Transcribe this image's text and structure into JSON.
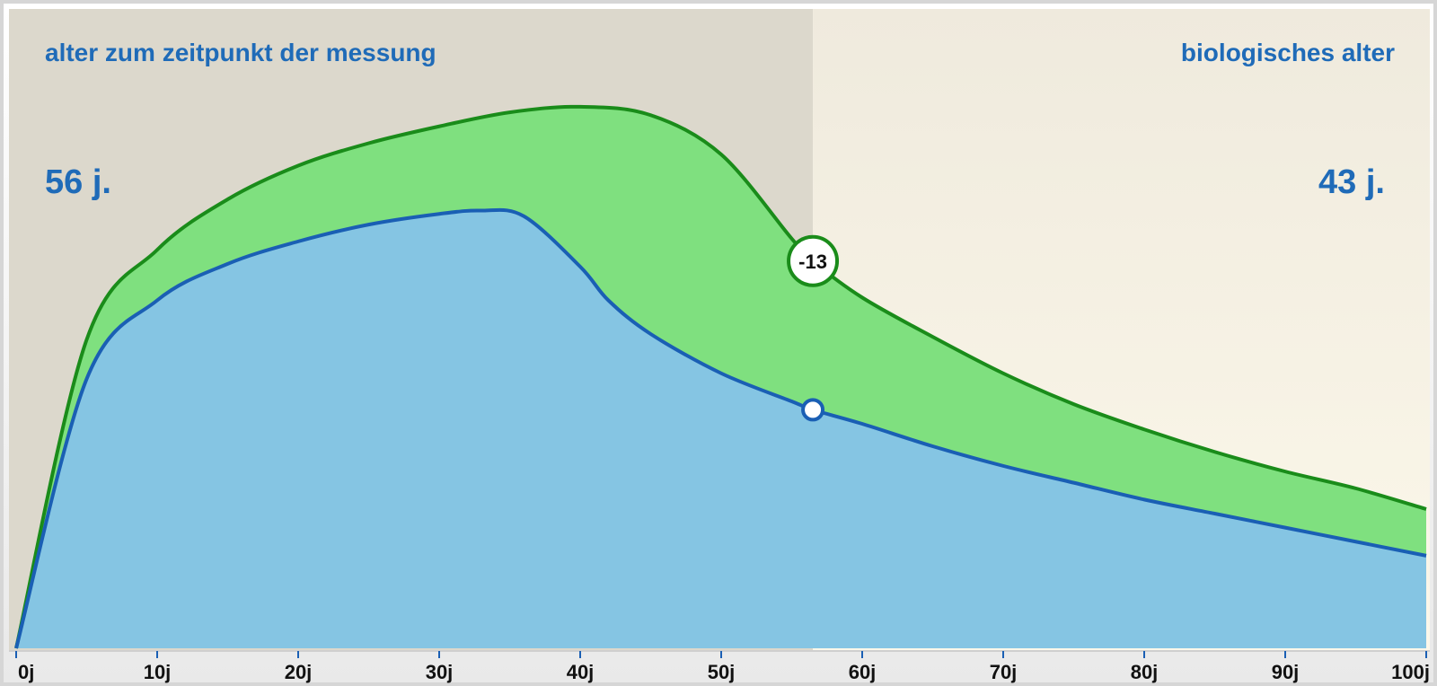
{
  "header": {
    "left_label": "alter zum zeitpunkt der messung",
    "right_label": "biologisches alter",
    "left_value": "56 j.",
    "right_value": "43 j."
  },
  "chart_data": {
    "type": "area",
    "xlim": [
      0,
      100
    ],
    "x_ticks": [
      "0j",
      "10j",
      "20j",
      "30j",
      "40j",
      "50j",
      "60j",
      "70j",
      "80j",
      "90j",
      "100j"
    ],
    "measurement_age": 56.5,
    "difference_label": "-13",
    "series": [
      {
        "color": "#1a8c1a",
        "fill": "#7fe07f",
        "x": [
          0,
          5,
          10,
          15,
          20,
          25,
          30,
          35,
          40,
          45,
          50,
          55,
          56.5,
          60,
          65,
          70,
          75,
          80,
          85,
          90,
          95,
          100
        ],
        "y": [
          0,
          55,
          71,
          80,
          86,
          90,
          93,
          95.5,
          96.5,
          95,
          88,
          73,
          69,
          62.5,
          55.5,
          49,
          43.5,
          39,
          35,
          31.5,
          28.5,
          24.8
        ]
      },
      {
        "color": "#1a5fb4",
        "fill": "#85c5e3",
        "x": [
          0,
          5,
          10,
          15,
          20,
          25,
          30,
          33,
          36,
          40,
          42,
          45,
          50,
          55,
          56.5,
          60,
          65,
          70,
          75,
          80,
          85,
          90,
          95,
          100
        ],
        "y": [
          0,
          48,
          62,
          68.5,
          72.5,
          75.5,
          77.4,
          78,
          77,
          68,
          62,
          56,
          49,
          44,
          42.5,
          40,
          36,
          32.5,
          29.5,
          26.5,
          24,
          21.5,
          19,
          16.5
        ]
      }
    ]
  }
}
